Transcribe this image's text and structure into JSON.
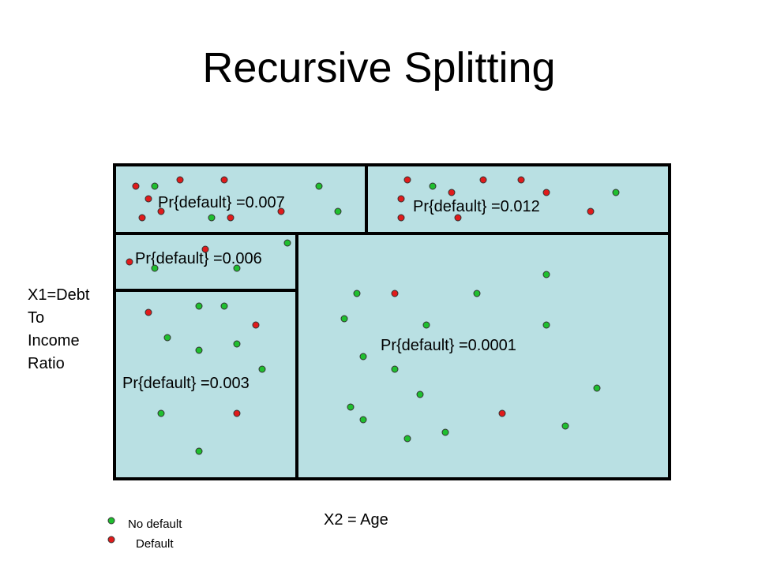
{
  "title": "Recursive Splitting",
  "axis": {
    "y_label_lines": [
      "X1=Debt",
      "To",
      "Income",
      "Ratio"
    ],
    "x_label": "X2 = Age"
  },
  "colors": {
    "region_fill": "#b9e0e3",
    "border": "#000000",
    "no_default": "#1fbf2f",
    "default": "#e01b1b"
  },
  "regions": [
    {
      "id": "top-left",
      "label": "Pr{default} =0.007"
    },
    {
      "id": "top-right",
      "label": "Pr{default} =0.012"
    },
    {
      "id": "mid-left",
      "label": "Pr{default} =0.006"
    },
    {
      "id": "bottom-left",
      "label": "Pr{default} =0.003"
    },
    {
      "id": "right",
      "label": "Pr{default} =0.0001"
    }
  ],
  "legend": {
    "no_default_label": "No default",
    "default_label": "Default"
  }
}
